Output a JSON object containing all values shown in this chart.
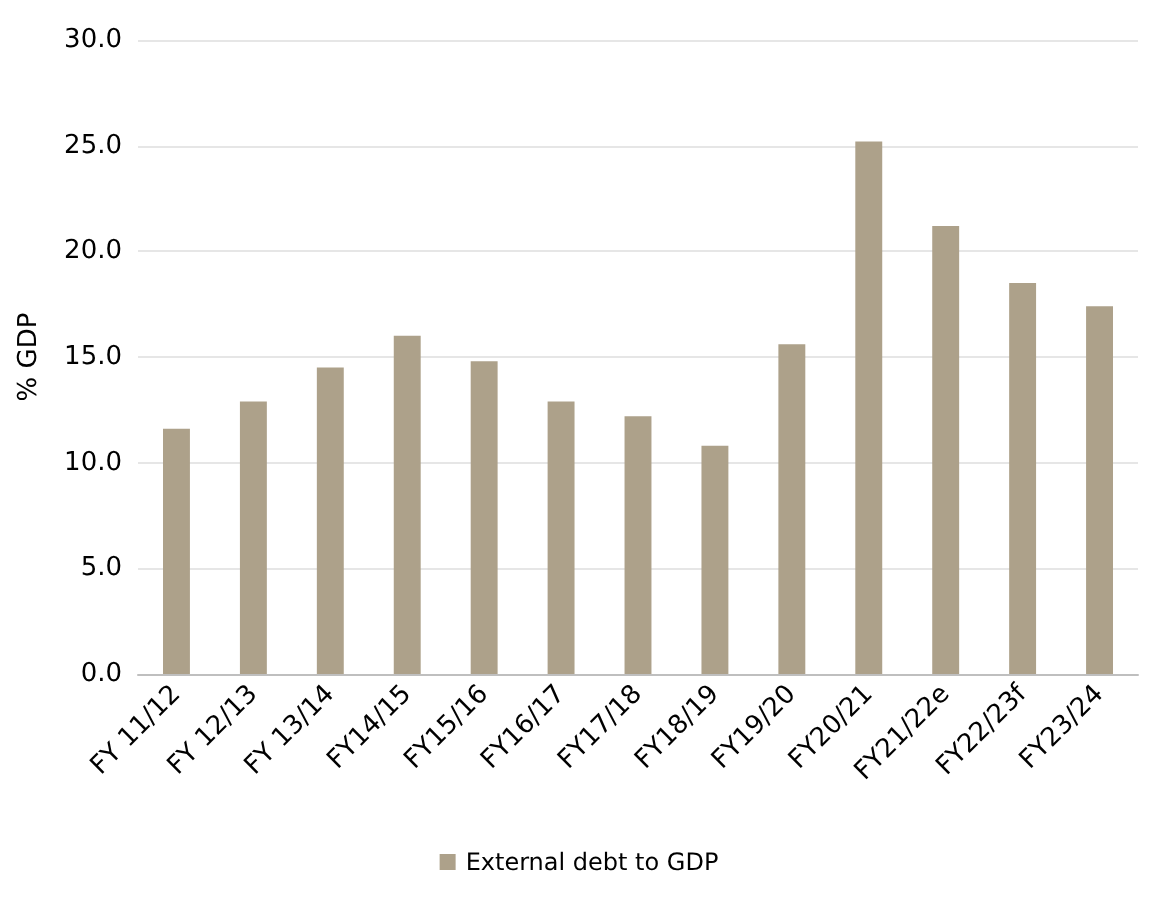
{
  "chart_data": {
    "type": "bar",
    "ylabel": "% GDP",
    "categories": [
      "FY 11/12",
      "FY 12/13",
      "FY 13/14",
      "FY14/15",
      "FY15/16",
      "FY16/17",
      "FY17/18",
      "FY18/19",
      "FY19/20",
      "FY20/21",
      "FY21/22e",
      "FY22/23f",
      "FY23/24"
    ],
    "series": [
      {
        "name": "External debt to GDP",
        "color": "#ada18a",
        "values": [
          11.6,
          12.9,
          14.5,
          16.0,
          14.8,
          12.9,
          12.2,
          10.8,
          15.6,
          25.2,
          21.2,
          18.5,
          17.4
        ]
      }
    ],
    "ylim": [
      0,
      30
    ],
    "yticks": [
      {
        "value": 0,
        "label": "0.0"
      },
      {
        "value": 5,
        "label": "5.0"
      },
      {
        "value": 10,
        "label": "10.0"
      },
      {
        "value": 15,
        "label": "15.0"
      },
      {
        "value": 20,
        "label": "20.0"
      },
      {
        "value": 25,
        "label": "25.0"
      },
      {
        "value": 30,
        "label": "30.0"
      }
    ],
    "grid": "y",
    "legend": "bottom"
  }
}
